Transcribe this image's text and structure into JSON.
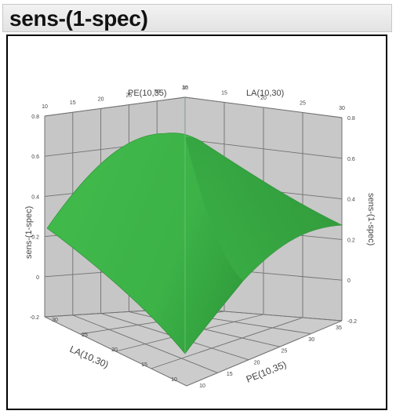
{
  "panel": {
    "title": "sens-(1-spec)"
  },
  "chart_data": {
    "type": "surface3d",
    "title": "",
    "axes": {
      "pe": {
        "label": "PE(10,35)",
        "ticks": [
          10,
          15,
          20,
          25,
          30,
          35
        ]
      },
      "la": {
        "label": "LA(10,30)",
        "ticks": [
          10,
          15,
          20,
          25,
          30
        ]
      },
      "z": {
        "label": "sens-(1-spec)",
        "ticks": [
          "-0.2",
          "0",
          "0.2",
          "0.4",
          "0.6",
          "0.8"
        ],
        "range": [
          -0.2,
          0.8
        ]
      }
    },
    "surface_color": "#3db54a",
    "grid": true,
    "corner_values": [
      {
        "PE": 10,
        "LA": 30,
        "value": 0.34
      },
      {
        "PE": 35,
        "LA": 30,
        "value": 0.69
      },
      {
        "PE": 35,
        "LA": 10,
        "value": 0.36
      },
      {
        "PE": 10,
        "LA": 10,
        "value": -0.12
      }
    ]
  }
}
